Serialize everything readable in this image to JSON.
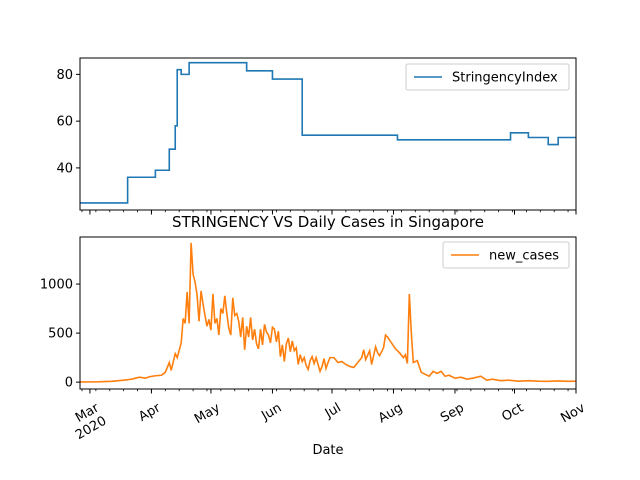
{
  "chart_data": {
    "type": "line",
    "title": "STRINGENCY VS Daily Cases in Singapore",
    "xlabel": "Date",
    "x_range": [
      "2020-02-25",
      "2020-11-01"
    ],
    "x_ticks": [
      {
        "date": "2020-03-01",
        "label": "Mar",
        "sublabel": "2020"
      },
      {
        "date": "2020-04-01",
        "label": "Apr"
      },
      {
        "date": "2020-05-01",
        "label": "May"
      },
      {
        "date": "2020-06-01",
        "label": "Jun"
      },
      {
        "date": "2020-07-01",
        "label": "Jul"
      },
      {
        "date": "2020-08-01",
        "label": "Aug"
      },
      {
        "date": "2020-09-01",
        "label": "Sep"
      },
      {
        "date": "2020-10-01",
        "label": "Oct"
      },
      {
        "date": "2020-11-01",
        "label": "Nov"
      }
    ],
    "subplots": [
      {
        "ylim": [
          22,
          87
        ],
        "y_ticks": [
          "40",
          "60",
          "80"
        ],
        "legend_position": "top-right",
        "series": [
          {
            "name": "StringencyIndex",
            "color": "#1f77b4",
            "step": true,
            "points": [
              [
                "2020-02-25",
                25
              ],
              [
                "2020-03-20",
                36
              ],
              [
                "2020-04-03",
                39
              ],
              [
                "2020-04-10",
                48
              ],
              [
                "2020-04-13",
                58
              ],
              [
                "2020-04-14",
                82
              ],
              [
                "2020-04-16",
                80
              ],
              [
                "2020-04-20",
                85
              ],
              [
                "2020-05-19",
                81.5
              ],
              [
                "2020-06-01",
                78
              ],
              [
                "2020-06-16",
                54
              ],
              [
                "2020-08-03",
                52
              ],
              [
                "2020-09-29",
                55
              ],
              [
                "2020-10-08",
                53
              ],
              [
                "2020-10-18",
                50
              ],
              [
                "2020-10-23",
                53
              ],
              [
                "2020-11-01",
                53
              ]
            ]
          }
        ]
      },
      {
        "ylim": [
          -70,
          1480
        ],
        "y_ticks": [
          "0",
          "500",
          "1000"
        ],
        "legend_position": "top-right",
        "series": [
          {
            "name": "new_cases",
            "color": "#ff7f0e",
            "step": false,
            "points": [
              [
                "2020-02-25",
                2
              ],
              [
                "2020-03-05",
                3
              ],
              [
                "2020-03-12",
                8
              ],
              [
                "2020-03-18",
                20
              ],
              [
                "2020-03-22",
                30
              ],
              [
                "2020-03-26",
                50
              ],
              [
                "2020-03-29",
                40
              ],
              [
                "2020-03-31",
                55
              ],
              [
                "2020-04-03",
                65
              ],
              [
                "2020-04-06",
                70
              ],
              [
                "2020-04-08",
                100
              ],
              [
                "2020-04-10",
                200
              ],
              [
                "2020-04-11",
                120
              ],
              [
                "2020-04-13",
                290
              ],
              [
                "2020-04-14",
                250
              ],
              [
                "2020-04-16",
                400
              ],
              [
                "2020-04-17",
                650
              ],
              [
                "2020-04-18",
                600
              ],
              [
                "2020-04-19",
                920
              ],
              [
                "2020-04-20",
                600
              ],
              [
                "2020-04-21",
                1420
              ],
              [
                "2020-04-22",
                1100
              ],
              [
                "2020-04-23",
                1020
              ],
              [
                "2020-04-24",
                890
              ],
              [
                "2020-04-25",
                620
              ],
              [
                "2020-04-26",
                930
              ],
              [
                "2020-04-27",
                800
              ],
              [
                "2020-04-28",
                680
              ],
              [
                "2020-04-29",
                570
              ],
              [
                "2020-04-30",
                640
              ],
              [
                "2020-05-01",
                530
              ],
              [
                "2020-05-02",
                900
              ],
              [
                "2020-05-03",
                600
              ],
              [
                "2020-05-04",
                650
              ],
              [
                "2020-05-05",
                480
              ],
              [
                "2020-05-06",
                750
              ],
              [
                "2020-05-07",
                700
              ],
              [
                "2020-05-08",
                880
              ],
              [
                "2020-05-09",
                700
              ],
              [
                "2020-05-10",
                550
              ],
              [
                "2020-05-11",
                480
              ],
              [
                "2020-05-12",
                860
              ],
              [
                "2020-05-13",
                680
              ],
              [
                "2020-05-14",
                700
              ],
              [
                "2020-05-15",
                620
              ],
              [
                "2020-05-16",
                460
              ],
              [
                "2020-05-17",
                660
              ],
              [
                "2020-05-18",
                330
              ],
              [
                "2020-05-19",
                570
              ],
              [
                "2020-05-20",
                460
              ],
              [
                "2020-05-21",
                660
              ],
              [
                "2020-05-22",
                430
              ],
              [
                "2020-05-23",
                540
              ],
              [
                "2020-05-24",
                390
              ],
              [
                "2020-05-25",
                340
              ],
              [
                "2020-05-26",
                540
              ],
              [
                "2020-05-27",
                380
              ],
              [
                "2020-05-28",
                590
              ],
              [
                "2020-05-29",
                510
              ],
              [
                "2020-05-30",
                480
              ],
              [
                "2020-05-31",
                400
              ],
              [
                "2020-06-01",
                560
              ],
              [
                "2020-06-02",
                540
              ],
              [
                "2020-06-03",
                410
              ],
              [
                "2020-06-04",
                520
              ],
              [
                "2020-06-05",
                260
              ],
              [
                "2020-06-06",
                380
              ],
              [
                "2020-06-07",
                210
              ],
              [
                "2020-06-08",
                390
              ],
              [
                "2020-06-09",
                450
              ],
              [
                "2020-06-10",
                310
              ],
              [
                "2020-06-11",
                420
              ],
              [
                "2020-06-12",
                320
              ],
              [
                "2020-06-13",
                350
              ],
              [
                "2020-06-14",
                180
              ],
              [
                "2020-06-15",
                280
              ],
              [
                "2020-06-16",
                210
              ],
              [
                "2020-06-17",
                250
              ],
              [
                "2020-06-18",
                170
              ],
              [
                "2020-06-19",
                130
              ],
              [
                "2020-06-20",
                220
              ],
              [
                "2020-06-21",
                260
              ],
              [
                "2020-06-22",
                190
              ],
              [
                "2020-06-23",
                250
              ],
              [
                "2020-06-24",
                180
              ],
              [
                "2020-06-25",
                110
              ],
              [
                "2020-06-26",
                160
              ],
              [
                "2020-06-27",
                240
              ],
              [
                "2020-06-28",
                140
              ],
              [
                "2020-06-29",
                200
              ],
              [
                "2020-06-30",
                250
              ],
              [
                "2020-07-02",
                250
              ],
              [
                "2020-07-04",
                200
              ],
              [
                "2020-07-06",
                210
              ],
              [
                "2020-07-08",
                180
              ],
              [
                "2020-07-10",
                160
              ],
              [
                "2020-07-12",
                150
              ],
              [
                "2020-07-14",
                200
              ],
              [
                "2020-07-16",
                250
              ],
              [
                "2020-07-17",
                330
              ],
              [
                "2020-07-18",
                230
              ],
              [
                "2020-07-20",
                320
              ],
              [
                "2020-07-21",
                180
              ],
              [
                "2020-07-23",
                360
              ],
              [
                "2020-07-24",
                300
              ],
              [
                "2020-07-25",
                270
              ],
              [
                "2020-07-27",
                350
              ],
              [
                "2020-07-28",
                480
              ],
              [
                "2020-07-29",
                460
              ],
              [
                "2020-07-31",
                400
              ],
              [
                "2020-08-02",
                340
              ],
              [
                "2020-08-04",
                300
              ],
              [
                "2020-08-06",
                250
              ],
              [
                "2020-08-07",
                280
              ],
              [
                "2020-08-08",
                190
              ],
              [
                "2020-08-09",
                900
              ],
              [
                "2020-08-10",
                500
              ],
              [
                "2020-08-11",
                200
              ],
              [
                "2020-08-13",
                220
              ],
              [
                "2020-08-15",
                100
              ],
              [
                "2020-08-17",
                80
              ],
              [
                "2020-08-19",
                60
              ],
              [
                "2020-08-21",
                110
              ],
              [
                "2020-08-23",
                90
              ],
              [
                "2020-08-25",
                110
              ],
              [
                "2020-08-27",
                60
              ],
              [
                "2020-08-29",
                70
              ],
              [
                "2020-09-01",
                40
              ],
              [
                "2020-09-04",
                50
              ],
              [
                "2020-09-07",
                30
              ],
              [
                "2020-09-10",
                40
              ],
              [
                "2020-09-14",
                60
              ],
              [
                "2020-09-17",
                20
              ],
              [
                "2020-09-20",
                30
              ],
              [
                "2020-09-24",
                15
              ],
              [
                "2020-09-28",
                20
              ],
              [
                "2020-10-03",
                10
              ],
              [
                "2020-10-08",
                15
              ],
              [
                "2020-10-13",
                10
              ],
              [
                "2020-10-18",
                8
              ],
              [
                "2020-10-23",
                12
              ],
              [
                "2020-10-28",
                8
              ],
              [
                "2020-11-01",
                10
              ]
            ]
          }
        ]
      }
    ]
  }
}
